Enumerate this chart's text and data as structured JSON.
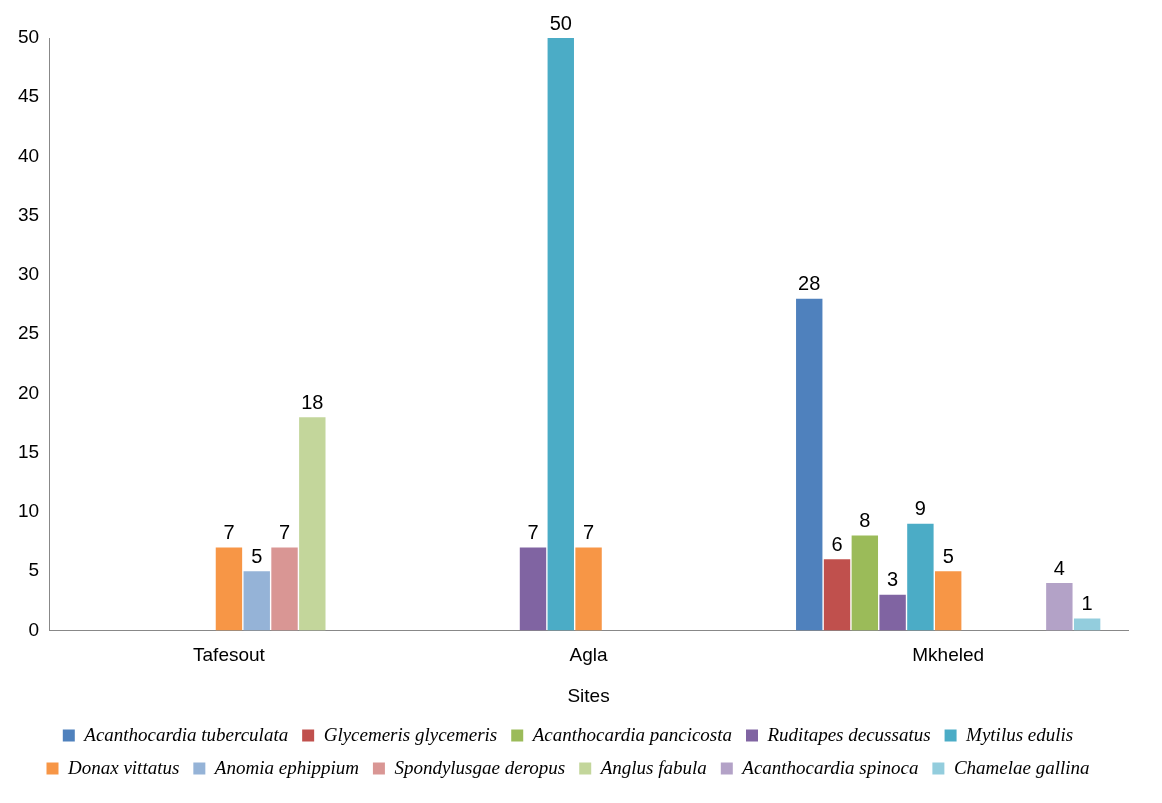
{
  "chart_data": {
    "type": "bar",
    "xlabel": "Sites",
    "categories": [
      "Tafesout",
      "Agla",
      "Mkheled"
    ],
    "ylim": [
      0,
      50
    ],
    "yticks": [
      0,
      5,
      10,
      15,
      20,
      25,
      30,
      35,
      40,
      45,
      50
    ],
    "grid": false,
    "legend": "bottom",
    "series": [
      {
        "name": "Acanthocardia tuberculata",
        "color": "#4f81bd",
        "values": [
          0,
          0,
          28
        ],
        "value_labels": [
          null,
          null,
          "28"
        ]
      },
      {
        "name": "Glycemeris glycemeris",
        "color": "#c0504d",
        "values": [
          0,
          0,
          6
        ],
        "value_labels": [
          null,
          null,
          "6"
        ]
      },
      {
        "name": "Acanthocardia pancicosta",
        "color": "#9bbb59",
        "values": [
          0,
          0,
          8
        ],
        "value_labels": [
          null,
          null,
          "8"
        ]
      },
      {
        "name": "Ruditapes decussatus",
        "color": "#8064a2",
        "values": [
          0,
          7,
          3
        ],
        "value_labels": [
          null,
          "7",
          "3"
        ]
      },
      {
        "name": "Mytilus edulis",
        "color": "#4bacc6",
        "values": [
          0,
          50,
          9
        ],
        "value_labels": [
          null,
          "50",
          "9"
        ]
      },
      {
        "name": "Donax vittatus",
        "color": "#f79646",
        "values": [
          7,
          7,
          5
        ],
        "value_labels": [
          "7",
          "7",
          "5"
        ]
      },
      {
        "name": "Anomia ephippium",
        "color": "#95b3d7",
        "values": [
          5,
          0,
          0
        ],
        "value_labels": [
          "5",
          null,
          null
        ]
      },
      {
        "name": "Spondylusgae deropus",
        "color": "#d99694",
        "values": [
          7,
          0,
          0
        ],
        "value_labels": [
          "7",
          null,
          null
        ]
      },
      {
        "name": "Anglus fabula",
        "color": "#c3d69b",
        "values": [
          18,
          0,
          0
        ],
        "value_labels": [
          "18",
          null,
          null
        ]
      },
      {
        "name": "Acanthocardia spinoca",
        "color": "#b3a2c7",
        "values": [
          0,
          0,
          4
        ],
        "value_labels": [
          null,
          null,
          "4"
        ]
      },
      {
        "name": "Chamelae gallina",
        "color": "#93cddd",
        "values": [
          0,
          0,
          1
        ],
        "value_labels": [
          null,
          null,
          "1"
        ]
      }
    ]
  }
}
